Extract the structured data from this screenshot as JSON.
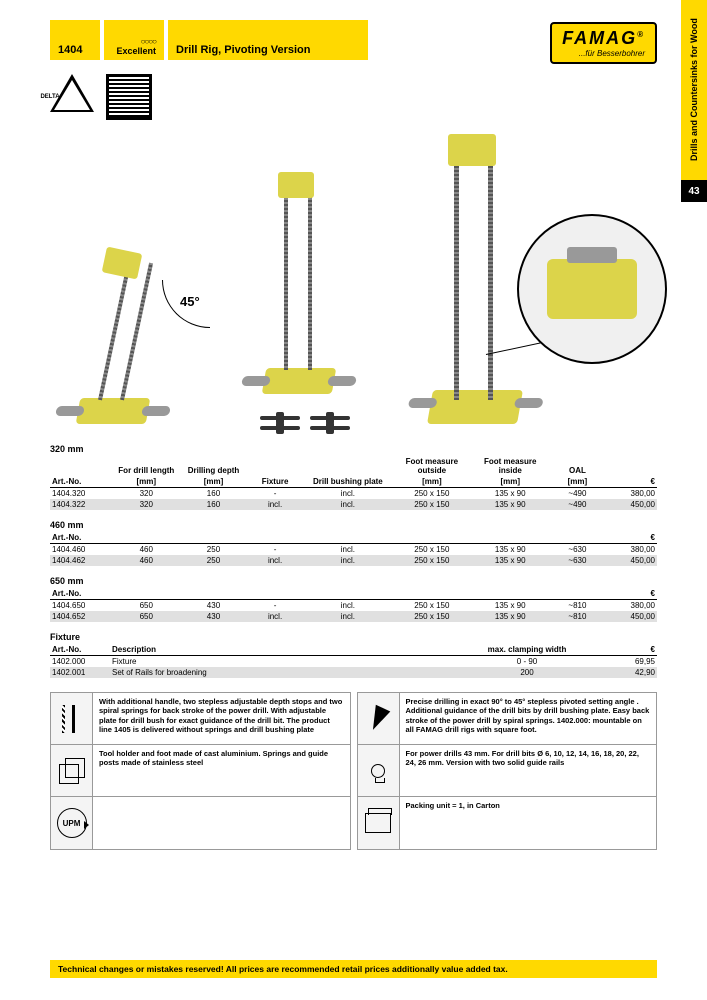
{
  "sidebar": {
    "category": "Drills and Countersinks for Wood",
    "page": "43"
  },
  "header": {
    "code": "1404",
    "rating": "Excellent",
    "stars": "○○○○",
    "title": "Drill Rig, Pivoting Version"
  },
  "logo": {
    "main": "FAMAG",
    "sub": "...für Besserbohrer",
    "reg": "®"
  },
  "badge_triangle": "DELTA",
  "hero": {
    "angle": "45°"
  },
  "columns": {
    "artno": "Art.-No.",
    "bar_len": "For drill length",
    "drill_depth": "Drilling depth",
    "fixture": "Fixture",
    "bushing": "Drill bushing plate",
    "foot_out": "Foot measure outside",
    "foot_in": "Foot measure inside",
    "oal": "OAL",
    "price": "€",
    "mm": "[mm]",
    "desc": "Description",
    "clamp": "max. clamping width"
  },
  "groups": [
    {
      "title": "320 mm",
      "rows": [
        {
          "art": "1404.320",
          "bar": "320",
          "depth": "160",
          "fix": "-",
          "bush": "incl.",
          "fo": "250 x 150",
          "fi": "135 x 90",
          "oal": "~490",
          "price": "380,00"
        },
        {
          "art": "1404.322",
          "bar": "320",
          "depth": "160",
          "fix": "incl.",
          "bush": "incl.",
          "fo": "250 x 150",
          "fi": "135 x 90",
          "oal": "~490",
          "price": "450,00"
        }
      ]
    },
    {
      "title": "460 mm",
      "rows": [
        {
          "art": "1404.460",
          "bar": "460",
          "depth": "250",
          "fix": "-",
          "bush": "incl.",
          "fo": "250 x 150",
          "fi": "135 x 90",
          "oal": "~630",
          "price": "380,00"
        },
        {
          "art": "1404.462",
          "bar": "460",
          "depth": "250",
          "fix": "incl.",
          "bush": "incl.",
          "fo": "250 x 150",
          "fi": "135 x 90",
          "oal": "~630",
          "price": "450,00"
        }
      ]
    },
    {
      "title": "650 mm",
      "rows": [
        {
          "art": "1404.650",
          "bar": "650",
          "depth": "430",
          "fix": "-",
          "bush": "incl.",
          "fo": "250 x 150",
          "fi": "135 x 90",
          "oal": "~810",
          "price": "380,00"
        },
        {
          "art": "1404.652",
          "bar": "650",
          "depth": "430",
          "fix": "incl.",
          "bush": "incl.",
          "fo": "250 x 150",
          "fi": "135 x 90",
          "oal": "~810",
          "price": "450,00"
        }
      ]
    }
  ],
  "fixture_section": {
    "title": "Fixture",
    "rows": [
      {
        "art": "1402.000",
        "desc": "Fixture",
        "clamp": "0 - 90",
        "price": "69,95"
      },
      {
        "art": "1402.001",
        "desc": "Set of Rails for broadening",
        "clamp": "200",
        "price": "42,90"
      }
    ]
  },
  "features_left": [
    "With additional handle, two stepless adjustable depth stops and two spiral springs for back stroke of the power drill. With adjustable plate for drill bush for exact guidance of the drill bit.\n\nThe product line 1405 is delivered without springs and drill bushing plate",
    "Tool holder and foot made of cast aluminium. Springs and guide posts made of stainless steel",
    ""
  ],
  "features_right": [
    "Precise drilling in exact 90° to 45° stepless pivoted setting angle . Additional guidance of the drill bits by drill bushing plate. Easy back stroke of the power drill by spiral springs. 1402.000: mountable on all FAMAG drill rigs with square foot.",
    "For power drills 43 mm. For drill bits Ø 6, 10, 12, 14, 16, 18, 20, 22, 24, 26 mm. Version with two solid guide rails",
    "Packing unit = 1, in Carton"
  ],
  "upm": "UPM",
  "footer": "Technical changes or mistakes reserved! All prices are recommended retail prices additionally value added tax."
}
